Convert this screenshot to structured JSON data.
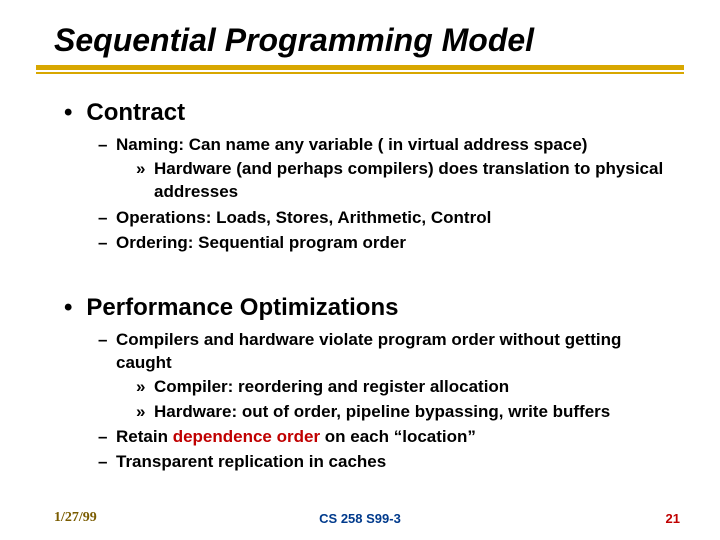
{
  "colors": {
    "underline": "#d8a700",
    "text": "#000000",
    "accent": "#c00000",
    "footer_center": "#003a8c",
    "footer_date": "#7a5c00",
    "footer_page": "#c00000",
    "background": "#ffffff"
  },
  "title": "Sequential Programming Model",
  "sections": [
    {
      "heading": "Contract",
      "items": [
        {
          "text": "Naming:  Can name any variable ( in virtual address space)",
          "sub": [
            {
              "text": "Hardware (and perhaps compilers) does translation to physical addresses"
            }
          ]
        },
        {
          "text": "Operations: Loads, Stores, Arithmetic, Control"
        },
        {
          "text": "Ordering:  Sequential program order"
        }
      ]
    },
    {
      "heading": "Performance Optimizations",
      "items": [
        {
          "text": "Compilers and hardware violate program order without getting caught",
          "sub": [
            {
              "text": "Compiler: reordering and register allocation"
            },
            {
              "text": "Hardware: out of order, pipeline bypassing, write buffers"
            }
          ]
        },
        {
          "text_pre": "Retain ",
          "text_accent": "dependence order",
          "text_post": " on each “location”"
        },
        {
          "text": "Transparent replication in caches"
        }
      ]
    }
  ],
  "footer": {
    "date": "1/27/99",
    "center": "CS 258 S99-3",
    "page": "21"
  }
}
